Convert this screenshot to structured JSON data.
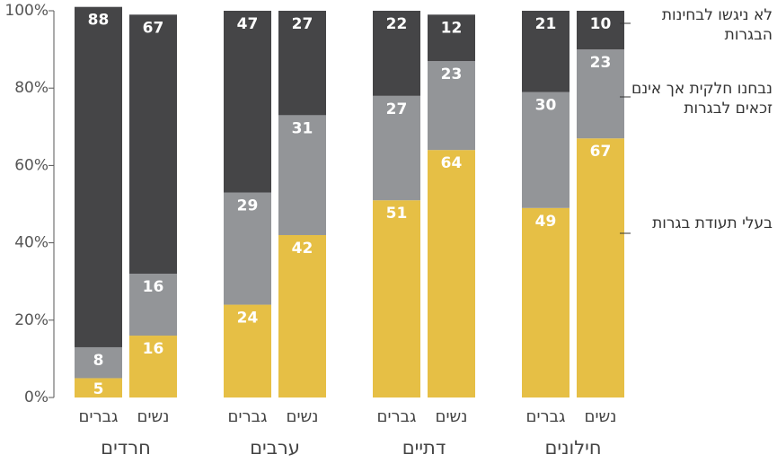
{
  "chart_data": {
    "type": "stacked_bar",
    "groups": [
      "חרדים",
      "ערבים",
      "דתיים",
      "חילונים"
    ],
    "categories": [
      "גברים",
      "נשים",
      "גברים",
      "נשים",
      "גברים",
      "נשים",
      "גברים",
      "נשים"
    ],
    "series": [
      {
        "name": "בעלי תעודת בגרות",
        "color": "#e6bf45",
        "values": [
          5,
          16,
          24,
          42,
          51,
          64,
          49,
          67
        ]
      },
      {
        "name": "נבחנו חלקית אך אינם זכאים לבגרות",
        "color": "#939598",
        "values": [
          8,
          16,
          29,
          31,
          27,
          23,
          30,
          23
        ]
      },
      {
        "name": "לא ניגשו לבחינות הבגרות",
        "color": "#454547",
        "values": [
          88,
          67,
          47,
          27,
          22,
          12,
          21,
          10
        ]
      }
    ],
    "ylim": [
      0,
      100
    ],
    "yticks": [
      {
        "value": 0,
        "label": "0%"
      },
      {
        "value": 20,
        "label": "20%"
      },
      {
        "value": 40,
        "label": "40%"
      },
      {
        "value": 60,
        "label": "60%"
      },
      {
        "value": 80,
        "label": "80%"
      },
      {
        "value": 100,
        "label": "100%"
      }
    ]
  }
}
